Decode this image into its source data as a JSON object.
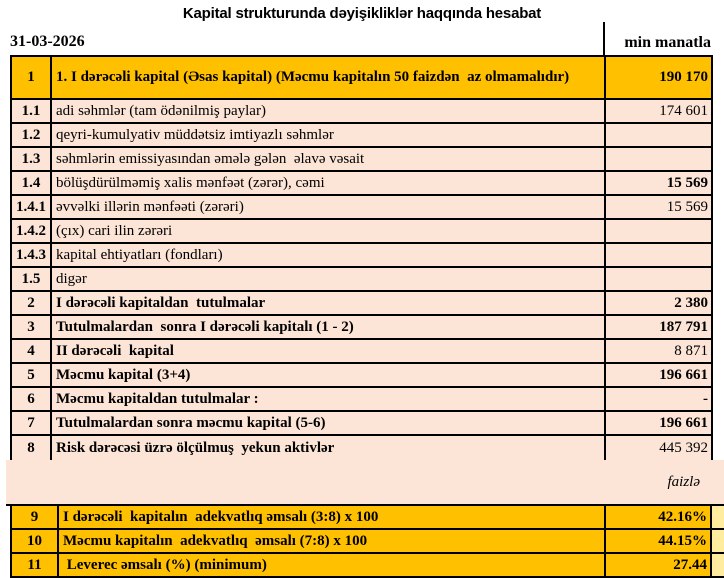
{
  "header": {
    "title": "Kapital strukturunda dəyişikliklər haqqında hesabat",
    "date": "31-03-2026",
    "unit": "min manatla"
  },
  "colors": {
    "orange": "#FFC000",
    "pink": "#FCE4D6",
    "strip_yellow": "#FFEC9E",
    "border": "#000000"
  },
  "table": {
    "rows": [
      {
        "num": "1",
        "label": "1. I dərəcəli kapital (Əsas kapital) (Məcmu kapitalın 50 faizdən  az olmamalıdır)",
        "value": "190 170",
        "bg": "orange",
        "labelBold": true,
        "valueBold": true,
        "tall": true
      },
      {
        "num": "1.1",
        "label": "adi səhmlər (tam ödənilmiş paylar)",
        "value": "174 601",
        "bg": "pink",
        "labelBold": false,
        "valueBold": false
      },
      {
        "num": "1.2",
        "label": "qeyri-kumulyativ müddətsiz imtiyazlı səhmlər",
        "value": "",
        "bg": "pink",
        "labelBold": false,
        "valueBold": false
      },
      {
        "num": "1.3",
        "label": "səhmlərin emissiyasından əmələ gələn  əlavə vəsait",
        "value": "",
        "bg": "pink",
        "labelBold": false,
        "valueBold": false
      },
      {
        "num": "1.4",
        "label": "bölüşdürülməmiş xalis mənfəət (zərər), cəmi",
        "value": "15 569",
        "bg": "pink",
        "labelBold": false,
        "valueBold": true
      },
      {
        "num": "1.4.1",
        "label": "əvvəlki illərin mənfəəti (zərəri)",
        "value": "15 569",
        "bg": "pink",
        "labelBold": false,
        "valueBold": false
      },
      {
        "num": "1.4.2",
        "label": "(çıx) cari ilin zərəri",
        "value": "",
        "bg": "pink",
        "labelBold": false,
        "valueBold": false
      },
      {
        "num": "1.4.3",
        "label": "kapital ehtiyatları (fondları)",
        "value": "",
        "bg": "pink",
        "labelBold": false,
        "valueBold": false
      },
      {
        "num": "1.5",
        "label": "digər",
        "value": "",
        "bg": "pink",
        "labelBold": false,
        "valueBold": false
      },
      {
        "num": "2",
        "label": "I dərəcəli kapitaldan  tutulmalar",
        "value": "2 380",
        "bg": "pink",
        "labelBold": true,
        "valueBold": true
      },
      {
        "num": "3",
        "label": "Tutulmalardan  sonra I dərəcəli kapitalı (1 - 2)",
        "value": "187 791",
        "bg": "pink",
        "labelBold": true,
        "valueBold": true
      },
      {
        "num": "4",
        "label": "II dərəcəli  kapital",
        "value": "8 871",
        "bg": "pink",
        "labelBold": true,
        "valueBold": false
      },
      {
        "num": "5",
        "label": "Məcmu kapital (3+4)",
        "value": "196 661",
        "bg": "pink",
        "labelBold": true,
        "valueBold": true
      },
      {
        "num": "6",
        "label": "Məcmu kapitaldan tutulmalar :",
        "value": "-",
        "bg": "pink",
        "labelBold": true,
        "valueBold": true
      },
      {
        "num": "7",
        "label": "Tutulmalardan sonra məcmu kapital (5-6)",
        "value": "196 661",
        "bg": "pink",
        "labelBold": true,
        "valueBold": true
      },
      {
        "num": "8",
        "label": "Risk dərəcəsi üzrə ölçülmuş  yekun aktivlər",
        "value": "445 392",
        "bg": "pink",
        "labelBold": true,
        "valueBold": false
      }
    ]
  },
  "spacer": {
    "label": "faizlə"
  },
  "ratio_table": {
    "rows": [
      {
        "num": "9",
        "label": "I dərəcəli  kapitalın  adekvatlıq əmsalı (3:8) x 100",
        "value": "42.16%"
      },
      {
        "num": "10",
        "label": "Məcmu kapitalın  adekvatlıq  əmsalı (7:8) x 100",
        "value": "44.15%"
      },
      {
        "num": "11",
        "label": " Leverec əmsalı (%) (minimum)",
        "value": "27.44"
      }
    ]
  }
}
